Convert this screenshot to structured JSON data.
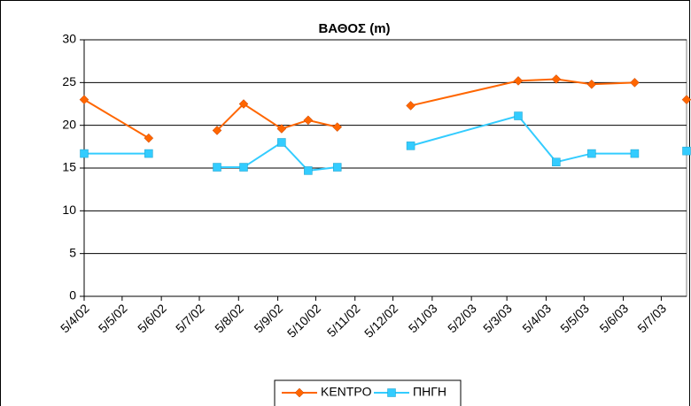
{
  "chart_data": {
    "type": "line",
    "title": "ΒΑΘΟΣ (m)",
    "x": [
      "5/4/02",
      "26/5/02",
      "26/6/02",
      "19/7/02",
      "9/8/02",
      "8/9/02",
      "29/9/02",
      "22/10/02",
      "22/11/02",
      "19/12/02",
      "14/3/03",
      "13/4/03",
      "11/5/03",
      "14/6/03",
      "5/7/03",
      "25/7/03"
    ],
    "series": [
      {
        "name": "ΚΕΝΤΡΟ",
        "color": "#ff6600",
        "marker": "diamond",
        "values": [
          23,
          18.5,
          null,
          19.4,
          22.5,
          19.6,
          20.6,
          19.8,
          null,
          22.3,
          25.2,
          25.4,
          24.8,
          25,
          null,
          23
        ]
      },
      {
        "name": "ΠΗΓΗ",
        "color": "#33ccff",
        "marker": "square",
        "values": [
          16.7,
          16.7,
          null,
          15.1,
          15.1,
          18,
          14.7,
          15.1,
          null,
          17.6,
          21.1,
          15.7,
          16.7,
          16.7,
          null,
          17
        ]
      }
    ],
    "xlim": [
      "5/4/02",
      "25/7/03"
    ],
    "xticks": [
      "5/4/02",
      "5/5/02",
      "5/6/02",
      "5/7/02",
      "5/8/02",
      "5/9/02",
      "5/10/02",
      "5/11/02",
      "5/12/02",
      "5/1/03",
      "5/2/03",
      "5/3/03",
      "5/4/03",
      "5/5/03",
      "5/6/03",
      "5/7/03"
    ],
    "ylim": [
      0,
      30
    ],
    "yticks": [
      0,
      5,
      10,
      15,
      20,
      25,
      30
    ],
    "grid": true,
    "legend": "bottom"
  }
}
